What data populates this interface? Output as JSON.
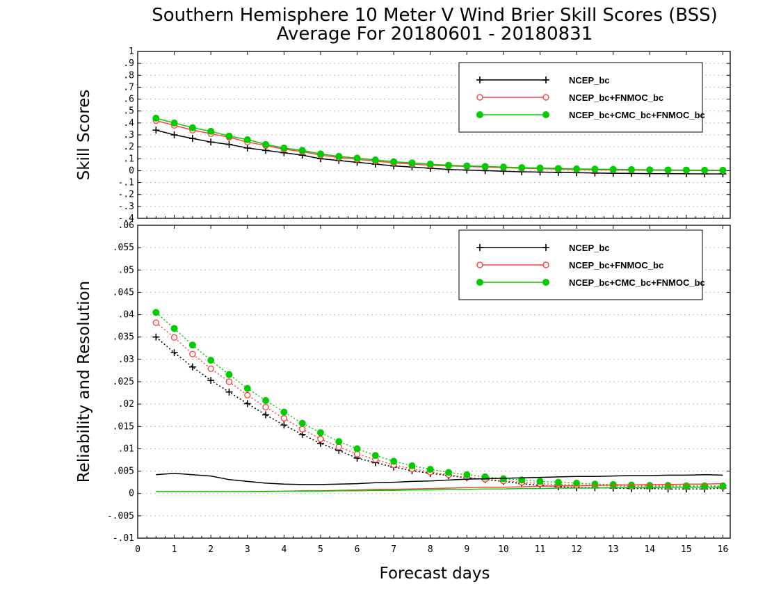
{
  "title": {
    "line1": "Southern Hemisphere 10 Meter V Wind Brier Skill Scores (BSS)",
    "line2": "Average For 20180601 - 20180831"
  },
  "chart_data": [
    {
      "type": "line",
      "panel": "top",
      "ylabel": "Skill Scores",
      "xlabel": "",
      "xlim": [
        0,
        16.2
      ],
      "ylim": [
        -0.4,
        1
      ],
      "yticks": [
        -0.4,
        -0.3,
        -0.2,
        -0.1,
        0,
        0.1,
        0.2,
        0.3,
        0.4,
        0.5,
        0.6,
        0.7,
        0.8,
        0.9,
        1
      ],
      "xticks": [
        0,
        1,
        2,
        3,
        4,
        5,
        6,
        7,
        8,
        9,
        10,
        11,
        12,
        13,
        14,
        15,
        16
      ],
      "grid": true,
      "legend_position": "top-right",
      "x": [
        0.5,
        1,
        1.5,
        2,
        2.5,
        3,
        3.5,
        4,
        4.5,
        5,
        5.5,
        6,
        6.5,
        7,
        7.5,
        8,
        8.5,
        9,
        9.5,
        10,
        10.5,
        11,
        11.5,
        12,
        12.5,
        13,
        13.5,
        14,
        14.5,
        15,
        15.5,
        16
      ],
      "series": [
        {
          "name": "NCEP_bc",
          "color": "#000000",
          "marker": "plus",
          "style": "solid",
          "values": [
            0.34,
            0.3,
            0.27,
            0.24,
            0.22,
            0.19,
            0.17,
            0.15,
            0.13,
            0.1,
            0.085,
            0.07,
            0.055,
            0.04,
            0.03,
            0.02,
            0.01,
            0.005,
            0.0,
            -0.005,
            -0.01,
            -0.012,
            -0.015,
            -0.017,
            -0.02,
            -0.022,
            -0.023,
            -0.025,
            -0.025,
            -0.026,
            -0.027,
            -0.027
          ]
        },
        {
          "name": "NCEP_bc+FNMOC_bc",
          "color": "#ff4040",
          "marker": "circle-open",
          "style": "solid",
          "values": [
            0.42,
            0.38,
            0.34,
            0.31,
            0.28,
            0.24,
            0.21,
            0.18,
            0.16,
            0.13,
            0.11,
            0.095,
            0.08,
            0.065,
            0.055,
            0.045,
            0.04,
            0.035,
            0.03,
            0.025,
            0.02,
            0.017,
            0.013,
            0.01,
            0.008,
            0.006,
            0.005,
            0.004,
            0.003,
            0.002,
            0.001,
            0.0
          ]
        },
        {
          "name": "NCEP_bc+CMC_bc+FNMOC_bc",
          "color": "#00cc00",
          "marker": "circle-filled",
          "style": "solid",
          "values": [
            0.44,
            0.4,
            0.36,
            0.33,
            0.29,
            0.26,
            0.22,
            0.19,
            0.17,
            0.14,
            0.12,
            0.105,
            0.09,
            0.075,
            0.065,
            0.055,
            0.045,
            0.04,
            0.035,
            0.03,
            0.025,
            0.022,
            0.018,
            0.015,
            0.013,
            0.011,
            0.009,
            0.007,
            0.006,
            0.005,
            0.004,
            0.003
          ]
        }
      ]
    },
    {
      "type": "line",
      "panel": "bottom",
      "ylabel": "Reliability and Resolution",
      "xlabel": "Forecast days",
      "xlim": [
        0,
        16.2
      ],
      "ylim": [
        -0.01,
        0.06
      ],
      "yticks": [
        -0.01,
        -0.005,
        0,
        0.005,
        0.01,
        0.015,
        0.02,
        0.025,
        0.03,
        0.035,
        0.04,
        0.045,
        0.05,
        0.055,
        0.06
      ],
      "xticks": [
        0,
        1,
        2,
        3,
        4,
        5,
        6,
        7,
        8,
        9,
        10,
        11,
        12,
        13,
        14,
        15,
        16
      ],
      "grid": true,
      "legend_position": "top-right",
      "x": [
        0.5,
        1,
        1.5,
        2,
        2.5,
        3,
        3.5,
        4,
        4.5,
        5,
        5.5,
        6,
        6.5,
        7,
        7.5,
        8,
        8.5,
        9,
        9.5,
        10,
        10.5,
        11,
        11.5,
        12,
        12.5,
        13,
        13.5,
        14,
        14.5,
        15,
        15.5,
        16
      ],
      "series": [
        {
          "name": "NCEP_bc",
          "color": "#000000",
          "marker": "plus",
          "style": "dotted",
          "values": [
            0.035,
            0.0315,
            0.0283,
            0.0253,
            0.0227,
            0.0201,
            0.0176,
            0.0153,
            0.0132,
            0.0112,
            0.0096,
            0.0079,
            0.0069,
            0.0059,
            0.0051,
            0.0045,
            0.004,
            0.0035,
            0.0031,
            0.0027,
            0.0022,
            0.0018,
            0.0015,
            0.0013,
            0.0013,
            0.0012,
            0.0011,
            0.0011,
            0.001,
            0.001,
            0.001,
            0.0012
          ]
        },
        {
          "name": "NCEP_bc+FNMOC_bc",
          "color": "#ff4040",
          "marker": "circle-open",
          "style": "dotted",
          "values": [
            0.0382,
            0.0349,
            0.0312,
            0.0279,
            0.025,
            0.022,
            0.0193,
            0.0168,
            0.0144,
            0.0122,
            0.0104,
            0.0088,
            0.0076,
            0.0064,
            0.0055,
            0.0048,
            0.0042,
            0.0036,
            0.0032,
            0.0028,
            0.0025,
            0.0022,
            0.002,
            0.0019,
            0.0018,
            0.0017,
            0.0016,
            0.0016,
            0.0015,
            0.0015,
            0.0015,
            0.0015
          ]
        },
        {
          "name": "NCEP_bc+CMC_bc+FNMOC_bc",
          "color": "#00cc00",
          "marker": "circle-filled",
          "style": "dotted",
          "values": [
            0.0405,
            0.0369,
            0.0332,
            0.0298,
            0.0266,
            0.0235,
            0.0208,
            0.0182,
            0.0157,
            0.0136,
            0.0116,
            0.01,
            0.0085,
            0.0072,
            0.0062,
            0.0054,
            0.0047,
            0.0042,
            0.0037,
            0.0033,
            0.003,
            0.0027,
            0.0025,
            0.0023,
            0.0021,
            0.002,
            0.0019,
            0.0018,
            0.0018,
            0.0017,
            0.0017,
            0.0017
          ]
        },
        {
          "name": "NCEP_bc",
          "color": "#000000",
          "marker": "none",
          "style": "solid",
          "values": [
            0.0042,
            0.0045,
            0.0042,
            0.0039,
            0.0031,
            0.0027,
            0.0023,
            0.0021,
            0.002,
            0.002,
            0.0021,
            0.0022,
            0.0024,
            0.0025,
            0.0027,
            0.0028,
            0.003,
            0.0032,
            0.0033,
            0.0034,
            0.0035,
            0.0036,
            0.0037,
            0.0038,
            0.0038,
            0.0039,
            0.004,
            0.004,
            0.0041,
            0.0041,
            0.0042,
            0.0041
          ]
        },
        {
          "name": "NCEP_bc+FNMOC_bc",
          "color": "#ff4040",
          "marker": "none",
          "style": "solid",
          "values": [
            0.0004,
            0.0004,
            0.0004,
            0.0004,
            0.0004,
            0.0004,
            0.0005,
            0.0005,
            0.0006,
            0.0006,
            0.0007,
            0.0008,
            0.0009,
            0.0009,
            0.001,
            0.0011,
            0.0012,
            0.0013,
            0.0014,
            0.0014,
            0.0015,
            0.0016,
            0.0017,
            0.0017,
            0.0018,
            0.0019,
            0.0019,
            0.002,
            0.002,
            0.0021,
            0.0021,
            0.0022
          ]
        },
        {
          "name": "NCEP_bc+CMC_bc+FNMOC_bc",
          "color": "#00cc00",
          "marker": "none",
          "style": "solid",
          "values": [
            0.0004,
            0.0004,
            0.0004,
            0.0004,
            0.0004,
            0.0004,
            0.0004,
            0.0005,
            0.0005,
            0.0005,
            0.0006,
            0.0006,
            0.0007,
            0.0007,
            0.0008,
            0.0008,
            0.0009,
            0.0009,
            0.001,
            0.001,
            0.0011,
            0.0011,
            0.0012,
            0.0012,
            0.0012,
            0.0013,
            0.0013,
            0.0013,
            0.0014,
            0.0014,
            0.0014,
            0.0014
          ]
        }
      ]
    }
  ],
  "legend": {
    "entries": [
      {
        "label": "NCEP_bc",
        "color": "#000000",
        "marker": "plus"
      },
      {
        "label": "NCEP_bc+FNMOC_bc",
        "color": "#ff4040",
        "marker": "circle-open"
      },
      {
        "label": "NCEP_bc+CMC_bc+FNMOC_bc",
        "color": "#00cc00",
        "marker": "circle-filled"
      }
    ]
  }
}
